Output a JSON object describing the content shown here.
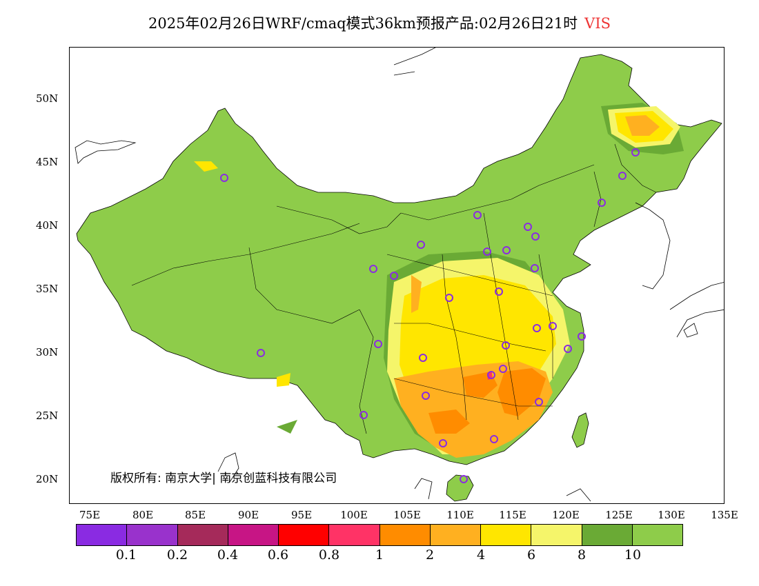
{
  "title": {
    "main": "2025年02月26日WRF/cmaq模式36km预报产品:02月26日21时",
    "variable": "VIS",
    "variable_color": "#ee3333"
  },
  "axes": {
    "lat_labels": [
      "50N",
      "45N",
      "40N",
      "35N",
      "30N",
      "25N",
      "20N"
    ],
    "lon_labels": [
      "75E",
      "80E",
      "85E",
      "90E",
      "95E",
      "100E",
      "105E",
      "110E",
      "115E",
      "120E",
      "125E",
      "130E",
      "135E"
    ]
  },
  "copyright": "版权所有: 南京大学| 南京创蓝科技有限公司",
  "legend": {
    "colors": [
      "#8a2be2",
      "#9932cc",
      "#a52a5a",
      "#c71585",
      "#ff0000",
      "#ff3366",
      "#ff8c00",
      "#ffb020",
      "#ffe600",
      "#f5f56a",
      "#6aaa35",
      "#8ecc4a"
    ],
    "labels": [
      "0.1",
      "0.2",
      "0.4",
      "0.6",
      "0.8",
      "1",
      "2",
      "4",
      "6",
      "8",
      "10"
    ]
  },
  "map": {
    "land_color": "#8ecc4a",
    "dark_green": "#6aaa35",
    "station_marker_color": "#8a2be2"
  }
}
